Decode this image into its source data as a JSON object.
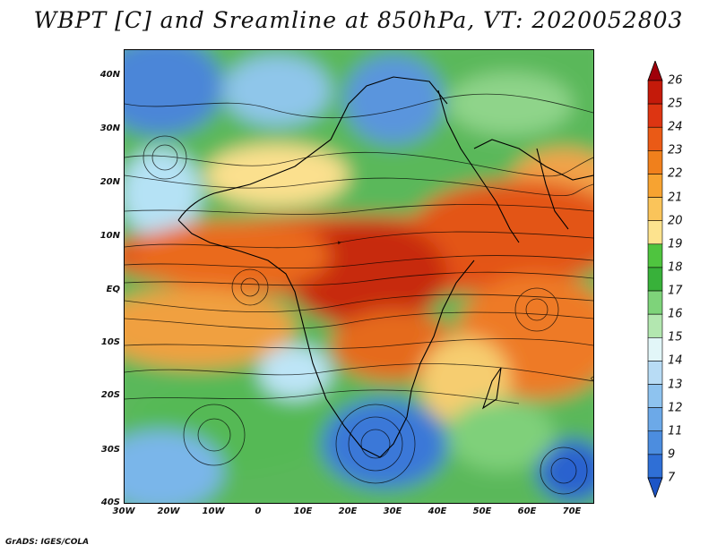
{
  "title": "WBPT [C] and Sreamline at 850hPa, VT: 2020052803",
  "map": {
    "lat_labels": [
      "40N",
      "30N",
      "20N",
      "10N",
      "EQ",
      "10S",
      "20S",
      "30S",
      "40S"
    ],
    "lon_labels": [
      "30W",
      "20W",
      "10W",
      "0",
      "10E",
      "20E",
      "30E",
      "40E",
      "50E",
      "60E",
      "70E"
    ],
    "lat_range": [
      -40,
      45
    ],
    "lon_range": [
      -30,
      75
    ]
  },
  "colorbar": {
    "labels": [
      "26",
      "25",
      "24",
      "23",
      "22",
      "21",
      "20",
      "19",
      "18",
      "17",
      "16",
      "15",
      "14",
      "13",
      "12",
      "11",
      "9",
      "7"
    ],
    "colors": [
      "#a0000a",
      "#c41a0a",
      "#dd3512",
      "#ea5a16",
      "#f0801c",
      "#f7a331",
      "#fac45a",
      "#fde38e",
      "#4fc43f",
      "#38b13a",
      "#7ed37a",
      "#b3e7b0",
      "#e2f6f8",
      "#b8dcf5",
      "#8ec3ef",
      "#6ca9e8",
      "#4c8ddf",
      "#2f6fd6",
      "#1d55c6"
    ]
  },
  "footer": "GrADS: IGES/COLA"
}
